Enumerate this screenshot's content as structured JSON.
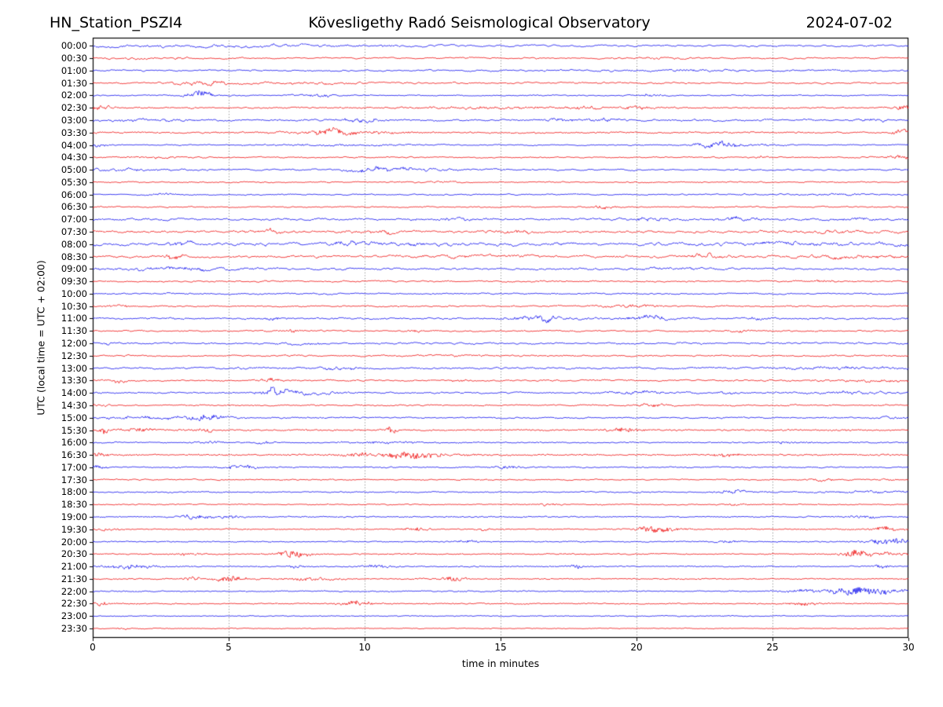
{
  "header": {
    "station": "HN_Station_PSZI4",
    "observatory": "Kövesligethy Radó Seismological Observatory",
    "date": "2024-07-02"
  },
  "chart_data": {
    "type": "line",
    "title": "Kövesligethy Radó Seismological Observatory helicorder, station HN_Station_PSZI4, 2024-07-02",
    "xlabel": "time in minutes",
    "ylabel": "UTC (local time = UTC + 02:00)",
    "x_range": [
      0,
      30
    ],
    "x_ticks": [
      0,
      5,
      10,
      15,
      20,
      25,
      30
    ],
    "grid_minutes": [
      5,
      10,
      15,
      20,
      25
    ],
    "grid_style": "dotted",
    "legend": "none",
    "trace_colors": {
      "blue": "#0000ee",
      "red": "#ee0000"
    },
    "row_minutes_span": 30,
    "rows": [
      {
        "label": "00:00",
        "color": "blue",
        "base": 1.5,
        "fuzz": 0.6,
        "events": [
          [
            3,
            4,
            1.3
          ],
          [
            10,
            2,
            0.8
          ]
        ]
      },
      {
        "label": "00:30",
        "color": "red",
        "base": 1.2,
        "fuzz": 0.6,
        "events": [
          [
            2,
            1.5,
            0.8
          ],
          [
            20.8,
            0.5,
            1.5
          ]
        ]
      },
      {
        "label": "01:00",
        "color": "blue",
        "base": 1.2,
        "fuzz": 0.6,
        "events": [
          [
            22,
            3,
            0.8
          ]
        ]
      },
      {
        "label": "01:30",
        "color": "red",
        "base": 1.3,
        "fuzz": 0.6,
        "events": [
          [
            4,
            0.8,
            2.3
          ],
          [
            8,
            2,
            0.9
          ]
        ]
      },
      {
        "label": "02:00",
        "color": "blue",
        "base": 0.8,
        "fuzz": 0.6,
        "events": [
          [
            3.9,
            0.35,
            4
          ],
          [
            8.3,
            0.6,
            1.2
          ],
          [
            20.5,
            0.4,
            1
          ]
        ]
      },
      {
        "label": "02:30",
        "color": "red",
        "base": 1.0,
        "fuzz": 0.8,
        "events": [
          [
            0.3,
            0.3,
            2
          ],
          [
            14.5,
            2,
            0.8
          ],
          [
            18,
            0.5,
            1.2
          ],
          [
            20,
            0.4,
            1.5
          ],
          [
            29.8,
            0.3,
            2.5
          ]
        ]
      },
      {
        "label": "03:00",
        "color": "blue",
        "base": 1.2,
        "fuzz": 0.8,
        "events": [
          [
            2,
            1,
            1
          ],
          [
            9.9,
            0.5,
            2
          ],
          [
            17.2,
            0.4,
            1.5
          ],
          [
            18.8,
            0.4,
            1.5
          ],
          [
            29,
            0.5,
            1
          ]
        ]
      },
      {
        "label": "03:30",
        "color": "red",
        "base": 1.0,
        "fuzz": 0.8,
        "events": [
          [
            8.7,
            0.5,
            2.5
          ],
          [
            9.5,
            1.5,
            1
          ],
          [
            29.8,
            0.3,
            2.5
          ]
        ]
      },
      {
        "label": "04:00",
        "color": "blue",
        "base": 0.8,
        "fuzz": 0.6,
        "events": [
          [
            0.2,
            0.2,
            2.5
          ],
          [
            9,
            1.5,
            0.8
          ],
          [
            23,
            0.45,
            3.5
          ],
          [
            24,
            1,
            1
          ]
        ]
      },
      {
        "label": "04:30",
        "color": "red",
        "base": 0.9,
        "fuzz": 0.6,
        "events": [
          [
            2.5,
            1,
            0.8
          ],
          [
            24.7,
            0.2,
            1.2
          ],
          [
            29.8,
            0.4,
            2.5
          ]
        ]
      },
      {
        "label": "05:00",
        "color": "blue",
        "base": 1.2,
        "fuzz": 0.6,
        "events": [
          [
            1.5,
            1.5,
            1.2
          ],
          [
            10.4,
            0.8,
            2.8
          ],
          [
            12,
            1.5,
            1
          ]
        ]
      },
      {
        "label": "05:30",
        "color": "red",
        "base": 0.9,
        "fuzz": 0.6,
        "events": [
          [
            13,
            0.3,
            0.8
          ]
        ]
      },
      {
        "label": "06:00",
        "color": "blue",
        "base": 0.9,
        "fuzz": 0.6,
        "events": [
          [
            2.5,
            0.3,
            1.2
          ],
          [
            27.5,
            0.8,
            0.8
          ]
        ]
      },
      {
        "label": "06:30",
        "color": "red",
        "base": 0.9,
        "fuzz": 0.6,
        "events": [
          [
            18.8,
            0.3,
            2
          ]
        ]
      },
      {
        "label": "07:00",
        "color": "blue",
        "base": 1.5,
        "fuzz": 0.9,
        "events": [
          [
            13.3,
            0.4,
            1.5
          ],
          [
            20.5,
            0.4,
            2
          ],
          [
            23.7,
            0.5,
            1.8
          ],
          [
            28,
            1,
            1
          ]
        ]
      },
      {
        "label": "07:30",
        "color": "red",
        "base": 1.8,
        "fuzz": 0.9,
        "events": [
          [
            6.5,
            0.4,
            2
          ],
          [
            10.5,
            0.5,
            1.5
          ],
          [
            15.6,
            0.5,
            1.5
          ],
          [
            27,
            1,
            1
          ]
        ]
      },
      {
        "label": "08:00",
        "color": "blue",
        "base": 2.7,
        "fuzz": 1.0,
        "events": [
          [
            3.2,
            0.3,
            3
          ],
          [
            9.5,
            0.4,
            2.5
          ],
          [
            11,
            2,
            1
          ],
          [
            25.5,
            2,
            1.2
          ],
          [
            29.5,
            0.5,
            2
          ]
        ]
      },
      {
        "label": "08:30",
        "color": "red",
        "base": 1.8,
        "fuzz": 0.9,
        "events": [
          [
            2.9,
            0.3,
            3
          ],
          [
            14,
            2,
            0.8
          ],
          [
            22.5,
            0.6,
            2
          ],
          [
            27.5,
            1.5,
            1.5
          ]
        ]
      },
      {
        "label": "09:00",
        "color": "blue",
        "base": 1.5,
        "fuzz": 0.8,
        "events": [
          [
            3,
            1.5,
            1.5
          ],
          [
            21.5,
            1,
            0.8
          ]
        ]
      },
      {
        "label": "09:30",
        "color": "red",
        "base": 1.1,
        "fuzz": 0.7,
        "events": [
          [
            26.8,
            0.4,
            1.5
          ]
        ]
      },
      {
        "label": "10:00",
        "color": "blue",
        "base": 1.0,
        "fuzz": 0.7,
        "events": []
      },
      {
        "label": "10:30",
        "color": "red",
        "base": 1.0,
        "fuzz": 0.7,
        "events": [
          [
            1,
            0.4,
            1.2
          ],
          [
            19.7,
            0.7,
            1.5
          ]
        ]
      },
      {
        "label": "11:00",
        "color": "blue",
        "base": 1.2,
        "fuzz": 0.8,
        "events": [
          [
            6.7,
            0.3,
            1.5
          ],
          [
            16.4,
            0.5,
            3
          ],
          [
            18,
            2,
            0.8
          ],
          [
            20.5,
            0.4,
            3
          ],
          [
            24.5,
            0.5,
            1
          ]
        ]
      },
      {
        "label": "11:30",
        "color": "red",
        "base": 1.1,
        "fuzz": 0.7,
        "events": [
          [
            7.3,
            0.2,
            1.5
          ],
          [
            11.8,
            0.3,
            1
          ],
          [
            23.8,
            0.3,
            1
          ]
        ]
      },
      {
        "label": "12:00",
        "color": "blue",
        "base": 1.4,
        "fuzz": 0.7,
        "events": [
          [
            0.5,
            0.5,
            1
          ],
          [
            7.9,
            0.4,
            1.8
          ]
        ]
      },
      {
        "label": "12:30",
        "color": "red",
        "base": 1.0,
        "fuzz": 0.7,
        "events": [
          [
            13,
            1,
            0.6
          ]
        ]
      },
      {
        "label": "13:00",
        "color": "blue",
        "base": 1.4,
        "fuzz": 0.8,
        "events": [
          [
            9,
            0.5,
            1.5
          ],
          [
            27,
            1.5,
            1
          ]
        ]
      },
      {
        "label": "13:30",
        "color": "red",
        "base": 1.1,
        "fuzz": 0.7,
        "events": [
          [
            1,
            0.2,
            2
          ],
          [
            6.6,
            0.25,
            2.5
          ],
          [
            13.5,
            0.3,
            1
          ],
          [
            28.5,
            1.5,
            1
          ]
        ]
      },
      {
        "label": "14:00",
        "color": "blue",
        "base": 1.2,
        "fuzz": 0.7,
        "events": [
          [
            6.8,
            0.4,
            5
          ],
          [
            7.8,
            1,
            1.5
          ],
          [
            20,
            0.8,
            1.5
          ],
          [
            23.5,
            0.3,
            1.5
          ],
          [
            28,
            1.5,
            1.2
          ]
        ]
      },
      {
        "label": "14:30",
        "color": "red",
        "base": 1.0,
        "fuzz": 0.7,
        "events": [
          [
            0.3,
            0.2,
            1.5
          ],
          [
            20.7,
            0.4,
            1.5
          ]
        ]
      },
      {
        "label": "15:00",
        "color": "blue",
        "base": 1.0,
        "fuzz": 0.7,
        "events": [
          [
            2,
            1.5,
            1
          ],
          [
            4.1,
            0.5,
            3.5
          ],
          [
            29.5,
            0.4,
            1
          ]
        ]
      },
      {
        "label": "15:30",
        "color": "red",
        "base": 0.7,
        "fuzz": 0.9,
        "events": [
          [
            0.4,
            0.15,
            2.5
          ],
          [
            1.7,
            0.4,
            1.5
          ],
          [
            4.2,
            0.2,
            1.5
          ],
          [
            11,
            0.15,
            3
          ],
          [
            19.5,
            0.4,
            1.5
          ]
        ]
      },
      {
        "label": "16:00",
        "color": "blue",
        "base": 0.7,
        "fuzz": 0.7,
        "events": [
          [
            4.3,
            0.3,
            1.2
          ],
          [
            6.3,
            0.3,
            1
          ],
          [
            10.8,
            1,
            0.8
          ],
          [
            25.5,
            0.5,
            0.8
          ]
        ]
      },
      {
        "label": "16:30",
        "color": "red",
        "base": 0.7,
        "fuzz": 0.9,
        "events": [
          [
            0.3,
            0.15,
            2
          ],
          [
            9.8,
            0.5,
            1
          ],
          [
            11.8,
            0.9,
            2.5
          ],
          [
            23.3,
            0.3,
            1.2
          ]
        ]
      },
      {
        "label": "17:00",
        "color": "blue",
        "base": 0.8,
        "fuzz": 0.7,
        "events": [
          [
            0.2,
            0.2,
            1.5
          ],
          [
            5.5,
            0.5,
            2
          ],
          [
            15.2,
            0.4,
            1.2
          ]
        ]
      },
      {
        "label": "17:30",
        "color": "red",
        "base": 0.8,
        "fuzz": 0.6,
        "events": [
          [
            26.8,
            0.3,
            1.5
          ],
          [
            29.3,
            0.3,
            1
          ]
        ]
      },
      {
        "label": "18:00",
        "color": "blue",
        "base": 0.8,
        "fuzz": 0.7,
        "events": [
          [
            23.6,
            0.4,
            1.8
          ],
          [
            28.5,
            1,
            0.8
          ]
        ]
      },
      {
        "label": "18:30",
        "color": "red",
        "base": 0.7,
        "fuzz": 0.6,
        "events": [
          [
            16.8,
            0.3,
            1.2
          ],
          [
            23.5,
            0.3,
            0.8
          ]
        ]
      },
      {
        "label": "19:00",
        "color": "blue",
        "base": 0.7,
        "fuzz": 0.7,
        "events": [
          [
            3.8,
            0.4,
            2
          ],
          [
            5.2,
            0.3,
            1.2
          ],
          [
            28.3,
            0.4,
            1.2
          ]
        ]
      },
      {
        "label": "19:30",
        "color": "red",
        "base": 0.6,
        "fuzz": 0.7,
        "events": [
          [
            0.5,
            0.3,
            1
          ],
          [
            11.9,
            0.3,
            1.5
          ],
          [
            14.3,
            0.2,
            1.2
          ],
          [
            20.8,
            0.5,
            3
          ],
          [
            29.3,
            0.4,
            1.5
          ]
        ]
      },
      {
        "label": "20:00",
        "color": "blue",
        "base": 0.6,
        "fuzz": 0.7,
        "events": [
          [
            13.8,
            0.3,
            1
          ],
          [
            23.3,
            0.3,
            1
          ],
          [
            29.4,
            0.7,
            2.5
          ]
        ]
      },
      {
        "label": "20:30",
        "color": "red",
        "base": 0.6,
        "fuzz": 0.7,
        "events": [
          [
            3.5,
            0.3,
            1
          ],
          [
            7.4,
            0.35,
            3.5
          ],
          [
            28,
            0.3,
            2
          ],
          [
            28.8,
            1,
            1.2
          ]
        ]
      },
      {
        "label": "21:00",
        "color": "blue",
        "base": 0.6,
        "fuzz": 0.7,
        "events": [
          [
            1.3,
            0.6,
            1.8
          ],
          [
            7.5,
            0.2,
            1.5
          ],
          [
            10.5,
            0.5,
            1
          ],
          [
            17.8,
            0.2,
            1.5
          ],
          [
            29,
            0.2,
            1.5
          ]
        ]
      },
      {
        "label": "21:30",
        "color": "red",
        "base": 0.6,
        "fuzz": 0.7,
        "events": [
          [
            3.6,
            0.2,
            1.5
          ],
          [
            5,
            0.4,
            2.5
          ],
          [
            8,
            0.8,
            1
          ],
          [
            13.3,
            0.3,
            2
          ]
        ]
      },
      {
        "label": "22:00",
        "color": "blue",
        "base": 0.6,
        "fuzz": 0.7,
        "events": [
          [
            26,
            0.5,
            1
          ],
          [
            28.3,
            0.9,
            3.5
          ]
        ]
      },
      {
        "label": "22:30",
        "color": "red",
        "base": 0.6,
        "fuzz": 0.7,
        "events": [
          [
            0.3,
            0.2,
            1.5
          ],
          [
            9.7,
            0.4,
            2
          ],
          [
            26.2,
            0.3,
            1.5
          ]
        ]
      },
      {
        "label": "23:00",
        "color": "blue",
        "base": 0.5,
        "fuzz": 0.6,
        "events": []
      },
      {
        "label": "23:30",
        "color": "red",
        "base": 0.45,
        "fuzz": 0.5,
        "events": [
          [
            1.1,
            0.15,
            1.2
          ]
        ]
      }
    ]
  }
}
